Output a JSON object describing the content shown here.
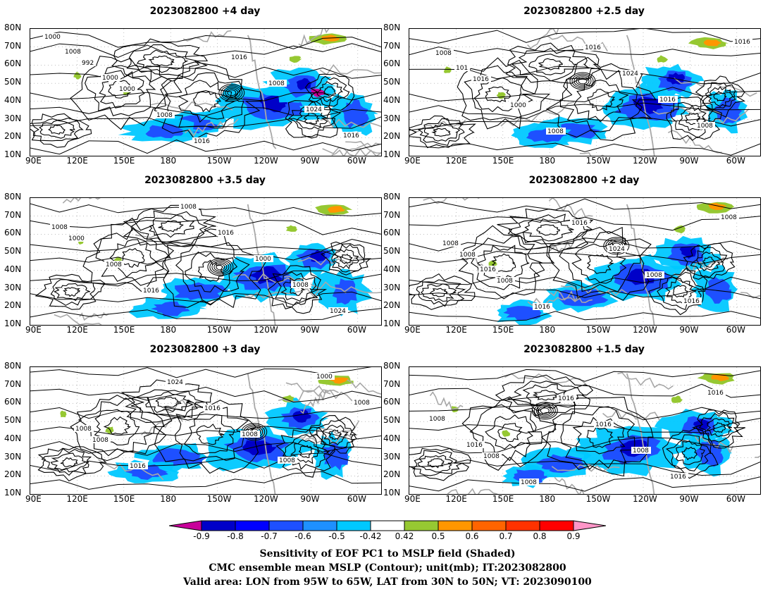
{
  "panels": [
    {
      "title": "2023082800  +4 day",
      "lead": 4.0
    },
    {
      "title": "2023082800  +2.5 day",
      "lead": 2.5
    },
    {
      "title": "2023082800  +3.5 day",
      "lead": 3.5
    },
    {
      "title": "2023082800  +2 day",
      "lead": 2.0
    },
    {
      "title": "2023082800  +3 day",
      "lead": 3.0
    },
    {
      "title": "2023082800  +1.5 day",
      "lead": 1.5
    }
  ],
  "axes": {
    "lat_ticks": [
      "80N",
      "70N",
      "60N",
      "50N",
      "40N",
      "30N",
      "20N",
      "10N"
    ],
    "lon_ticks": [
      "90E",
      "120E",
      "150E",
      "180",
      "150W",
      "120W",
      "90W",
      "60W"
    ]
  },
  "colorbar": {
    "labels": [
      "-0.9",
      "-0.8",
      "-0.7",
      "-0.6",
      "-0.5",
      "-0.42",
      "0.42",
      "0.5",
      "0.6",
      "0.7",
      "0.8",
      "0.9"
    ],
    "colors": [
      "#c8009a",
      "#0000c8",
      "#0000ff",
      "#1e50ff",
      "#1e90ff",
      "#00c8ff",
      "#ffffff",
      "#96c832",
      "#ff9600",
      "#ff6400",
      "#ff3200",
      "#ff0000",
      "#ff96c8"
    ]
  },
  "contour_labels": [
    [
      "1000",
      "992",
      "1000",
      "1008",
      "1016",
      "1016",
      "1008",
      "1024",
      "1016",
      "1008",
      "1000"
    ],
    [
      "1008",
      "1016",
      "1000",
      "1008",
      "1016",
      "1024",
      "1016",
      "1008",
      "1016",
      "101"
    ],
    [
      "1000",
      "1008",
      "1016",
      "1008",
      "1016",
      "1000",
      "1008",
      "1024",
      "1008"
    ],
    [
      "1008",
      "1008",
      "1016",
      "1016",
      "1024",
      "1008",
      "1016",
      "1008",
      "1008",
      "1016"
    ],
    [
      "1008",
      "1016",
      "1024",
      "1016",
      "1008",
      "1008",
      "1000",
      "1008",
      "1008"
    ],
    [
      "1008",
      "1008",
      "1016",
      "1016",
      "1008",
      "1016",
      "1016",
      "1008",
      "1016"
    ]
  ],
  "captions": [
    "Sensitivity of EOF PC1 to MSLP field (Shaded)",
    "CMC ensemble mean MSLP (Contour); unit(mb); IT:2023082800",
    "Valid area: LON from 95W to 65W, LAT from 30N to 50N; VT: 2023090100"
  ]
}
